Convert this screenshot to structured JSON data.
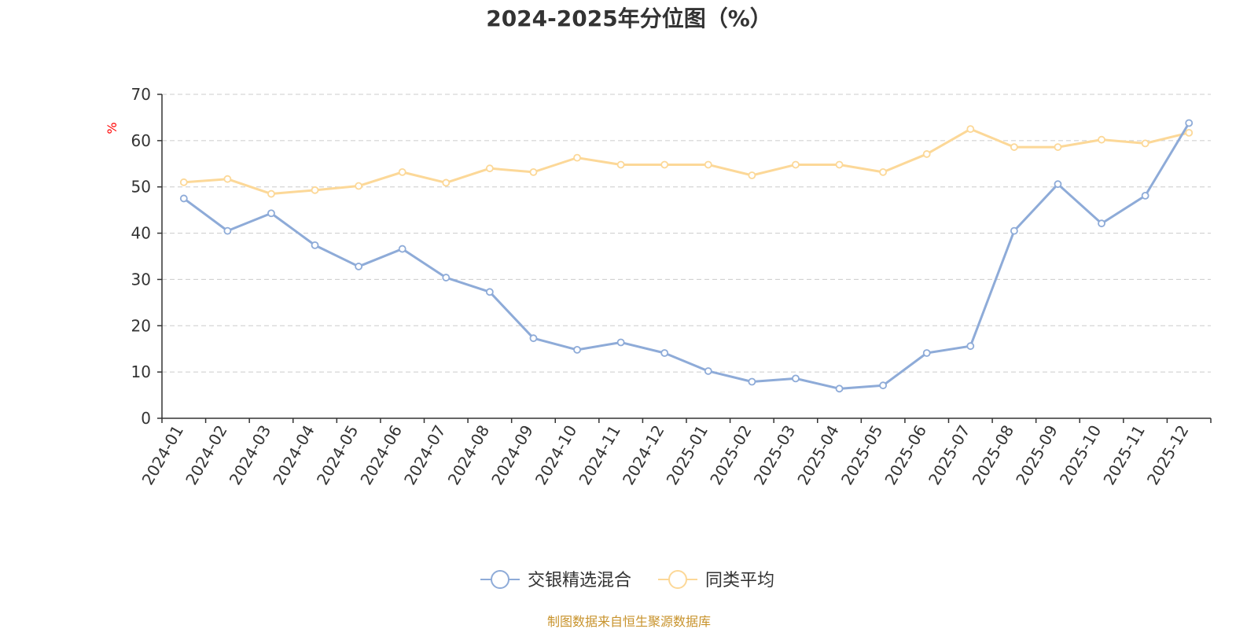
{
  "chart_data": {
    "type": "line",
    "title": "2024-2025年分位图（%）",
    "ylabel": "%",
    "xlabel": "",
    "ylim": [
      0,
      70
    ],
    "yticks": [
      0,
      10,
      20,
      30,
      40,
      50,
      60,
      70
    ],
    "grid": true,
    "legend_position": "bottom-center",
    "categories": [
      "2024-01",
      "2024-02",
      "2024-03",
      "2024-04",
      "2024-05",
      "2024-06",
      "2024-07",
      "2024-08",
      "2024-09",
      "2024-10",
      "2024-11",
      "2024-12",
      "2025-01",
      "2025-02",
      "2025-03",
      "2025-04",
      "2025-05",
      "2025-06",
      "2025-07",
      "2025-08",
      "2025-09",
      "2025-10",
      "2025-11",
      "2025-12"
    ],
    "series": [
      {
        "name": "交银精选混合",
        "color": "#8eabd8",
        "values": [
          47.5,
          40.5,
          44.3,
          37.4,
          32.8,
          36.6,
          30.4,
          27.3,
          17.3,
          14.8,
          16.4,
          14.1,
          10.2,
          7.9,
          8.6,
          6.4,
          7.1,
          14.1,
          15.6,
          40.5,
          50.6,
          42.1,
          48.1,
          63.8
        ]
      },
      {
        "name": "同类平均",
        "color": "#fcd898",
        "values": [
          51.0,
          51.7,
          48.5,
          49.3,
          50.2,
          53.2,
          50.9,
          54.0,
          53.2,
          56.3,
          54.8,
          54.8,
          54.8,
          52.5,
          54.8,
          54.8,
          53.2,
          57.1,
          62.5,
          58.6,
          58.6,
          60.2,
          59.4,
          61.7
        ]
      }
    ],
    "source": "制图数据来自恒生聚源数据库",
    "ylabel_color": "#ff0000",
    "source_color": "#c8932c",
    "axis_color": "#333333",
    "grid_color": "#cccccc"
  }
}
